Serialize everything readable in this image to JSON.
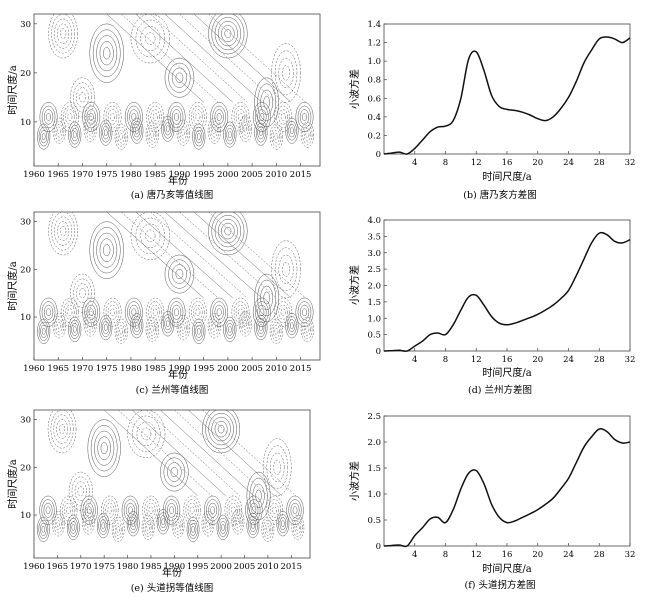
{
  "panels": [
    {
      "kind": "contour",
      "caption": "(a) 唐乃亥等值线图",
      "xlabel": "年份",
      "ylabel": "时间尺度/a",
      "xticks": [
        "1960",
        "1965",
        "1970",
        "1975",
        "1980",
        "1985",
        "1990",
        "1995",
        "2000",
        "2005",
        "2010",
        "2015"
      ],
      "yticks": [
        "10",
        "20",
        "30"
      ]
    },
    {
      "kind": "line",
      "caption": "(b) 唐乃亥方差图",
      "xlabel": "时间尺度/a",
      "ylabel": "小波方差",
      "xticks": [
        "4",
        "8",
        "12",
        "16",
        "20",
        "24",
        "28",
        "32"
      ],
      "yticks": [
        "0",
        "0.2",
        "0.4",
        "0.6",
        "0.8",
        "1.0",
        "1.2",
        "1.4"
      ]
    },
    {
      "kind": "contour",
      "caption": "(c) 兰州等值线图",
      "xlabel": "年份",
      "ylabel": "时间尺度/a",
      "xticks": [
        "1960",
        "1965",
        "1970",
        "1975",
        "1980",
        "1985",
        "1990",
        "1995",
        "2000",
        "2005",
        "2010",
        "2015"
      ],
      "yticks": [
        "10",
        "20",
        "30"
      ]
    },
    {
      "kind": "line",
      "caption": "(d) 兰州方差图",
      "xlabel": "时间尺度/a",
      "ylabel": "小波方差",
      "xticks": [
        "4",
        "8",
        "12",
        "16",
        "20",
        "24",
        "28",
        "32"
      ],
      "yticks": [
        "0",
        "0.5",
        "1.0",
        "1.5",
        "2.0",
        "2.5",
        "3.0",
        "3.5",
        "4.0"
      ]
    },
    {
      "kind": "contour",
      "caption": "(e) 头道拐等值线图",
      "xlabel": "年份",
      "ylabel": "时间尺度/a",
      "xticks": [
        "1960",
        "1965",
        "1970",
        "1975",
        "1980",
        "1985",
        "1990",
        "1995",
        "2000",
        "2005",
        "2010",
        "2015"
      ],
      "yticks": [
        "10",
        "20",
        "30"
      ]
    },
    {
      "kind": "line",
      "caption": "(f) 头道拐方差图",
      "xlabel": "时间尺度/a",
      "ylabel": "小波方差",
      "xticks": [
        "4",
        "8",
        "12",
        "16",
        "20",
        "24",
        "28",
        "32"
      ],
      "yticks": [
        "0",
        "0.5",
        "1.0",
        "1.5",
        "2.0",
        "2.5"
      ]
    }
  ],
  "chart_data": [
    {
      "type": "contour",
      "title": "(a) 唐乃亥等值线图",
      "xlabel": "年份",
      "ylabel": "时间尺度/a",
      "xlim": [
        1960,
        2019
      ],
      "ylim": [
        1,
        32
      ],
      "grid": false,
      "line_color": "#555555"
    },
    {
      "type": "line",
      "title": "(b) 唐乃亥方差图",
      "xlabel": "时间尺度/a",
      "ylabel": "小波方差",
      "xlim": [
        0,
        32
      ],
      "ylim": [
        0,
        1.4
      ],
      "x": [
        0,
        1,
        2,
        3,
        4,
        5,
        6,
        7,
        8,
        9,
        10,
        11,
        12,
        13,
        14,
        15,
        16,
        17,
        18,
        19,
        20,
        21,
        22,
        23,
        24,
        25,
        26,
        27,
        28,
        29,
        30,
        31,
        32
      ],
      "series": [
        {
          "values": [
            0,
            0.01,
            0.02,
            0.0,
            0.06,
            0.15,
            0.24,
            0.29,
            0.3,
            0.36,
            0.6,
            1.02,
            1.1,
            0.9,
            0.63,
            0.51,
            0.48,
            0.47,
            0.45,
            0.42,
            0.38,
            0.36,
            0.4,
            0.49,
            0.61,
            0.78,
            0.98,
            1.12,
            1.24,
            1.26,
            1.24,
            1.2,
            1.25
          ]
        }
      ],
      "grid": false
    },
    {
      "type": "contour",
      "title": "(c) 兰州等值线图",
      "xlabel": "年份",
      "ylabel": "时间尺度/a",
      "xlim": [
        1960,
        2019
      ],
      "ylim": [
        1,
        32
      ],
      "grid": false,
      "line_color": "#555555"
    },
    {
      "type": "line",
      "title": "(d) 兰州方差图",
      "xlabel": "时间尺度/a",
      "ylabel": "小波方差",
      "xlim": [
        0,
        32
      ],
      "ylim": [
        0,
        4.0
      ],
      "x": [
        0,
        1,
        2,
        3,
        4,
        5,
        6,
        7,
        8,
        9,
        10,
        11,
        12,
        13,
        14,
        15,
        16,
        17,
        18,
        19,
        20,
        21,
        22,
        23,
        24,
        25,
        26,
        27,
        28,
        29,
        30,
        31,
        32
      ],
      "series": [
        {
          "values": [
            0,
            0.01,
            0.02,
            0.0,
            0.15,
            0.3,
            0.5,
            0.55,
            0.5,
            0.8,
            1.25,
            1.65,
            1.7,
            1.4,
            1.05,
            0.85,
            0.8,
            0.85,
            0.93,
            1.02,
            1.12,
            1.25,
            1.4,
            1.6,
            1.85,
            2.3,
            2.8,
            3.3,
            3.6,
            3.55,
            3.35,
            3.3,
            3.4
          ]
        }
      ],
      "grid": false
    },
    {
      "type": "contour",
      "title": "(e) 头道拐等值线图",
      "xlabel": "年份",
      "ylabel": "时间尺度/a",
      "xlim": [
        1960,
        2019
      ],
      "ylim": [
        1,
        32
      ],
      "grid": false,
      "line_color": "#555555"
    },
    {
      "type": "line",
      "title": "(f) 头道拐方差图",
      "xlabel": "时间尺度/a",
      "ylabel": "小波方差",
      "xlim": [
        0,
        32
      ],
      "ylim": [
        0,
        2.5
      ],
      "x": [
        0,
        1,
        2,
        3,
        4,
        5,
        6,
        7,
        8,
        9,
        10,
        11,
        12,
        13,
        14,
        15,
        16,
        17,
        18,
        19,
        20,
        21,
        22,
        23,
        24,
        25,
        26,
        27,
        28,
        29,
        30,
        31,
        32
      ],
      "series": [
        {
          "values": [
            0,
            0.01,
            0.02,
            0.0,
            0.2,
            0.35,
            0.52,
            0.55,
            0.45,
            0.7,
            1.1,
            1.4,
            1.45,
            1.2,
            0.8,
            0.55,
            0.45,
            0.48,
            0.55,
            0.62,
            0.7,
            0.8,
            0.92,
            1.1,
            1.3,
            1.6,
            1.9,
            2.1,
            2.25,
            2.2,
            2.05,
            1.98,
            2.0
          ]
        }
      ],
      "grid": false
    }
  ]
}
